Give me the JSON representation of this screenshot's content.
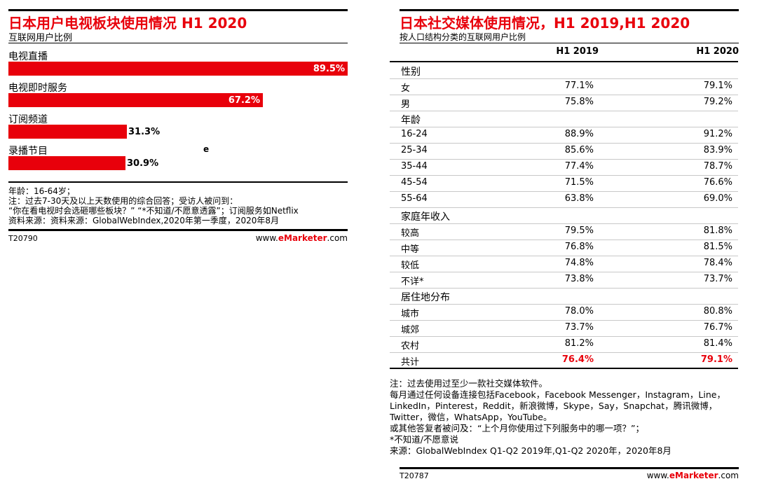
{
  "left": {
    "title": "日本用户电视板块使用情况 H1 2020",
    "subtitle": "互联网用户比例",
    "stray_mark": "e",
    "notes": [
      "年龄：16-64岁；",
      "注：过去7-30天及以上天数使用的综合回答；受访人被问到：",
      "“你在看电视时会选砸哪些板块？”  “*不知道/不愿意透露”；订阅服务如Netflix",
      "资料来源：资料来源：GlobalWebIndex,2020年第一季度，2020年8月"
    ],
    "footer_id": "T20790",
    "brand_pre": "www.",
    "brand_bold": "eMarketer",
    "brand_post": ".com"
  },
  "right": {
    "title": "日本社交媒体使用情况，H1 2019,H1 2020",
    "subtitle": "按人口结构分类的互联网用户比例",
    "col1": "H1 2019",
    "col2": "H1 2020",
    "rows": [
      {
        "label": "性别",
        "section": true
      },
      {
        "label": "女",
        "v1": "77.1%",
        "v2": "79.1%"
      },
      {
        "label": "男",
        "v1": "75.8%",
        "v2": "79.2%"
      },
      {
        "label": "年龄",
        "section": true
      },
      {
        "label": "16-24",
        "v1": "88.9%",
        "v2": "91.2%"
      },
      {
        "label": "25-34",
        "v1": "85.6%",
        "v2": "83.9%"
      },
      {
        "label": "35-44",
        "v1": "77.4%",
        "v2": "78.7%"
      },
      {
        "label": "45-54",
        "v1": "71.5%",
        "v2": "76.6%"
      },
      {
        "label": "55-64",
        "v1": "63.8%",
        "v2": "69.0%"
      },
      {
        "label": "家庭年收入",
        "section": true
      },
      {
        "label": "较高",
        "v1": "79.5%",
        "v2": "81.8%"
      },
      {
        "label": "中等",
        "v1": "76.8%",
        "v2": "81.5%"
      },
      {
        "label": "较低",
        "v1": "74.8%",
        "v2": "78.4%"
      },
      {
        "label": "不详*",
        "v1": "73.8%",
        "v2": "73.7%"
      },
      {
        "label": "居住地分布",
        "section": true
      },
      {
        "label": "城市",
        "v1": "78.0%",
        "v2": "80.8%"
      },
      {
        "label": "城郊",
        "v1": "73.7%",
        "v2": "76.7%"
      },
      {
        "label": "农村",
        "v1": "81.2%",
        "v2": "81.4%"
      },
      {
        "label": "共计",
        "v1": "76.4%",
        "v2": "79.1%",
        "total": true
      }
    ],
    "notes": [
      "注：过去使用过至少一款社交媒体软件。",
      "每月通过任何设备连接包括Facebook，Facebook Messenger，Instagram，Line，",
      "LinkedIn，Pinterest，Reddit，新浪微博，Skype，Say，Snapchat，腾讯微博，",
      "Twitter，微信，WhatsApp，YouTube。",
      "或其他答复者被问及：“上个月你使用过下列服务中的哪一项？”；",
      "*不知道/不愿意说",
      "来源：GlobalWebIndex Q1-Q2 2019年,Q1-Q2 2020年，2020年8月"
    ],
    "footer_id": "T20787",
    "brand_pre": "www.",
    "brand_bold": "eMarketer",
    "brand_post": ".com"
  },
  "chart_data": [
    {
      "type": "bar",
      "orientation": "horizontal",
      "title": "日本用户电视板块使用情况 H1 2020",
      "subtitle": "互联网用户比例",
      "categories": [
        "电视直播",
        "电视即时服务",
        "订阅频道",
        "录播节目"
      ],
      "values": [
        89.5,
        67.2,
        31.3,
        30.9
      ],
      "value_labels": [
        "89.5%",
        "67.2%",
        "31.3%",
        "30.9%"
      ],
      "unit": "%",
      "xlim": [
        0,
        89.5
      ],
      "grid": false,
      "legend": "none",
      "color": "#e8000b"
    },
    {
      "type": "table",
      "title": "日本社交媒体使用情况，H1 2019,H1 2020",
      "columns": [
        "H1 2019",
        "H1 2020"
      ],
      "total": {
        "label": "共计",
        "H1 2019": 76.4,
        "H1 2020": 79.1
      }
    }
  ]
}
